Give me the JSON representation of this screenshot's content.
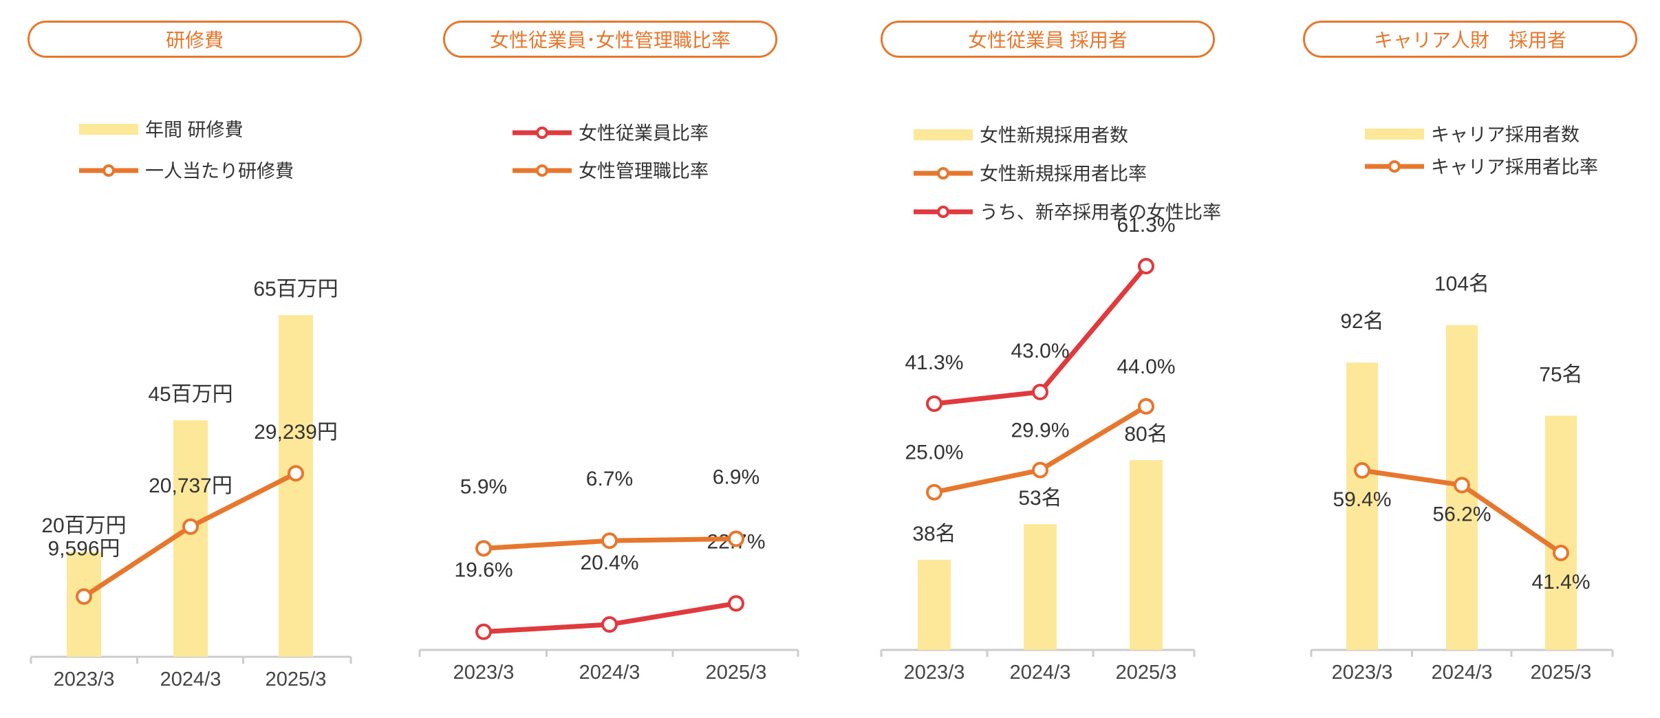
{
  "colors": {
    "bar": "#fde89a",
    "orange": "#e8772e",
    "red": "#e0393e",
    "axis": "#cccccc",
    "text": "#333333"
  },
  "chart_data": [
    {
      "type": "bar",
      "title": "研修費",
      "categories": [
        "2023/3",
        "2024/3",
        "2025/3"
      ],
      "legend": [
        "年間 研修費",
        "一人当たり研修費"
      ],
      "series": [
        {
          "name": "年間 研修費",
          "kind": "bar",
          "values": [
            20,
            45,
            65
          ],
          "unit": "百万円",
          "labels": [
            "20百万円",
            "45百万円",
            "65百万円"
          ]
        },
        {
          "name": "一人当たり研修費",
          "kind": "line",
          "values": [
            9596,
            20737,
            29239
          ],
          "unit": "円",
          "labels": [
            "9,596円",
            "20,737円",
            "29,239円"
          ]
        }
      ]
    },
    {
      "type": "line",
      "title": "女性従業員･女性管理職比率",
      "categories": [
        "2023/3",
        "2024/3",
        "2025/3"
      ],
      "legend": [
        "女性従業員比率",
        "女性管理職比率"
      ],
      "series": [
        {
          "name": "女性従業員比率",
          "kind": "line",
          "values": [
            19.6,
            20.4,
            22.7
          ],
          "unit": "%",
          "labels": [
            "19.6%",
            "20.4%",
            "22.7%"
          ]
        },
        {
          "name": "女性管理職比率",
          "kind": "line",
          "values": [
            5.9,
            6.7,
            6.9
          ],
          "unit": "%",
          "labels": [
            "5.9%",
            "6.7%",
            "6.9%"
          ]
        }
      ]
    },
    {
      "type": "bar",
      "title": "女性従業員 採用者",
      "categories": [
        "2023/3",
        "2024/3",
        "2025/3"
      ],
      "legend": [
        "女性新規採用者数",
        "女性新規採用者比率",
        "うち、新卒採用者の女性比率"
      ],
      "series": [
        {
          "name": "女性新規採用者数",
          "kind": "bar",
          "values": [
            38,
            53,
            80
          ],
          "unit": "名",
          "labels": [
            "38名",
            "53名",
            "80名"
          ]
        },
        {
          "name": "女性新規採用者比率",
          "kind": "line",
          "values": [
            25.0,
            29.9,
            44.0
          ],
          "unit": "%",
          "labels": [
            "25.0%",
            "29.9%",
            "44.0%"
          ]
        },
        {
          "name": "うち、新卒採用者の女性比率",
          "kind": "line",
          "values": [
            41.3,
            43.0,
            61.3
          ],
          "unit": "%",
          "labels": [
            "41.3%",
            "43.0%",
            "61.3%"
          ]
        }
      ]
    },
    {
      "type": "bar",
      "title": "キャリア人財　採用者",
      "categories": [
        "2023/3",
        "2024/3",
        "2025/3"
      ],
      "legend": [
        "キャリア採用者数",
        "キャリア採用者比率"
      ],
      "series": [
        {
          "name": "キャリア採用者数",
          "kind": "bar",
          "values": [
            92,
            104,
            75
          ],
          "unit": "名",
          "labels": [
            "92名",
            "104名",
            "75名"
          ]
        },
        {
          "name": "キャリア採用者比率",
          "kind": "line",
          "values": [
            59.4,
            56.2,
            41.4
          ],
          "unit": "%",
          "labels": [
            "59.4%",
            "56.2%",
            "41.4%"
          ]
        }
      ]
    }
  ]
}
